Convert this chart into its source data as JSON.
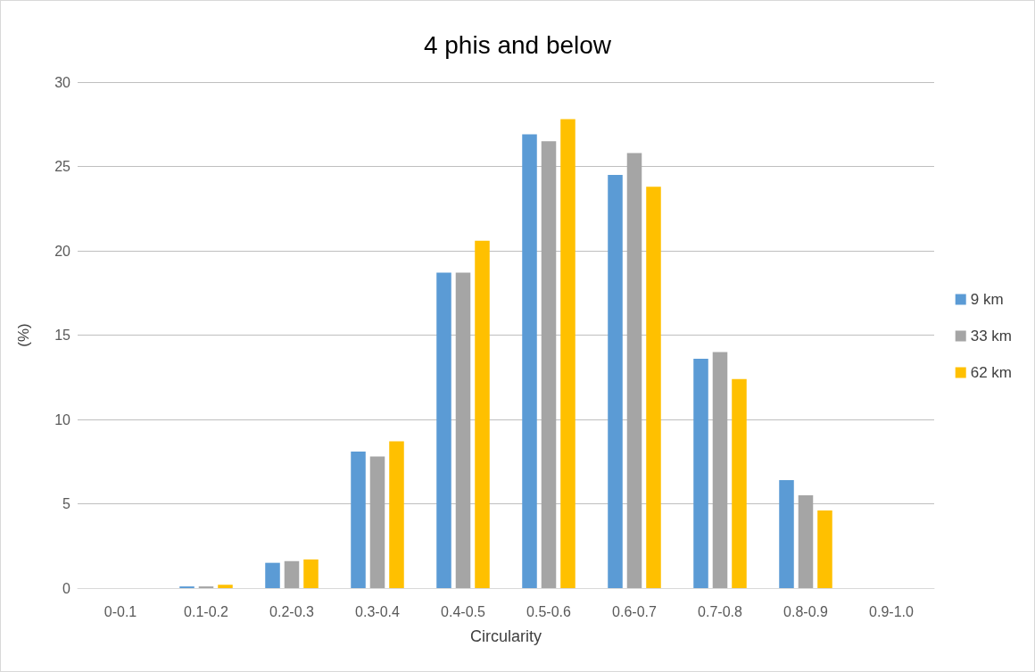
{
  "chart_data": {
    "type": "bar",
    "title": "4 phis and below",
    "xlabel": "Circularity",
    "ylabel": "(%)",
    "categories": [
      "0-0.1",
      "0.1-0.2",
      "0.2-0.3",
      "0.3-0.4",
      "0.4-0.5",
      "0.5-0.6",
      "0.6-0.7",
      "0.7-0.8",
      "0.8-0.9",
      "0.9-1.0"
    ],
    "series": [
      {
        "name": "9 km",
        "color": "#5b9bd5",
        "values": [
          0,
          0.1,
          1.5,
          8.1,
          18.7,
          26.9,
          24.5,
          13.6,
          6.4,
          0
        ]
      },
      {
        "name": "33 km",
        "color": "#a5a5a5",
        "values": [
          0,
          0.1,
          1.6,
          7.8,
          18.7,
          26.5,
          25.8,
          14.0,
          5.5,
          0
        ]
      },
      {
        "name": "62 km",
        "color": "#ffc000",
        "values": [
          0,
          0.2,
          1.7,
          8.7,
          20.6,
          27.8,
          23.8,
          12.4,
          4.6,
          0
        ]
      }
    ],
    "ylim": [
      0,
      30
    ],
    "yticks": [
      0,
      5,
      10,
      15,
      20,
      25,
      30
    ],
    "grid": "y",
    "legend": "right"
  }
}
